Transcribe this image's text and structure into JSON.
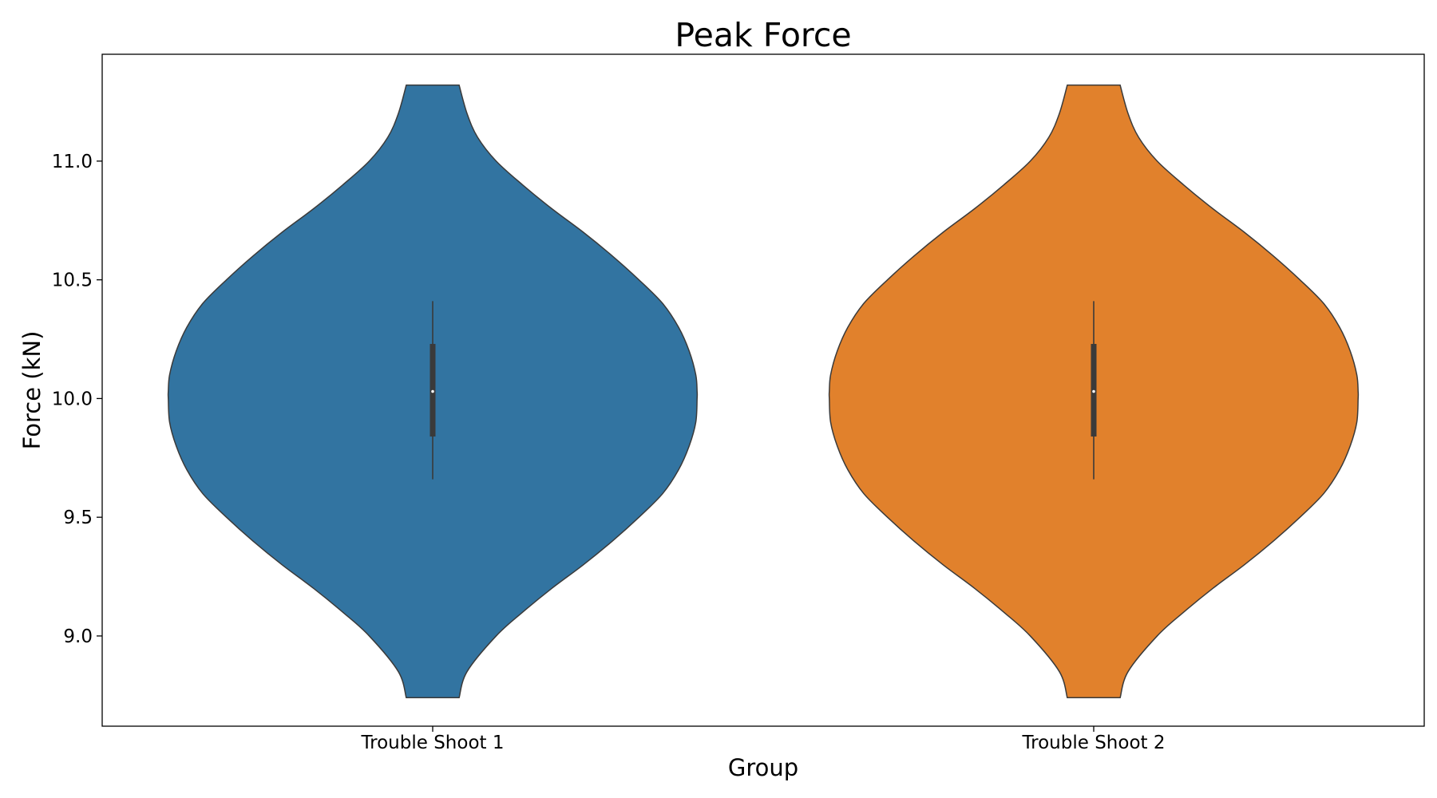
{
  "chart_data": {
    "type": "violin",
    "title": "Peak Force",
    "xlabel": "Group",
    "ylabel": "Force (kN)",
    "categories": [
      "Trouble Shoot 1",
      "Trouble Shoot 2"
    ],
    "ylim": [
      8.62,
      11.45
    ],
    "yticks": [
      9.0,
      9.5,
      10.0,
      10.5,
      11.0
    ],
    "ytick_labels": [
      "9.0",
      "9.5",
      "10.0",
      "10.5",
      "11.0"
    ],
    "grid": false,
    "series": [
      {
        "category": "Trouble Shoot 1",
        "color": "#3274a1",
        "stats": {
          "min": 9.66,
          "q1": 9.84,
          "median": 10.03,
          "q3": 10.23,
          "max": 10.41
        },
        "density_y": [
          8.74,
          8.85,
          9.0,
          9.1,
          9.2,
          9.3,
          9.4,
          9.5,
          9.6,
          9.7,
          9.8,
          9.9,
          10.0,
          10.03,
          10.1,
          10.2,
          10.3,
          10.4,
          10.5,
          10.6,
          10.7,
          10.8,
          10.9,
          11.0,
          11.1,
          11.2,
          11.32
        ],
        "density_w": [
          0.1,
          0.13,
          0.24,
          0.34,
          0.45,
          0.57,
          0.68,
          0.78,
          0.87,
          0.93,
          0.97,
          0.995,
          1.0,
          1.0,
          0.995,
          0.97,
          0.93,
          0.87,
          0.78,
          0.68,
          0.57,
          0.45,
          0.34,
          0.24,
          0.17,
          0.13,
          0.1
        ]
      },
      {
        "category": "Trouble Shoot 2",
        "color": "#e1812c",
        "stats": {
          "min": 9.66,
          "q1": 9.84,
          "median": 10.03,
          "q3": 10.23,
          "max": 10.41
        },
        "density_y": [
          8.74,
          8.85,
          9.0,
          9.1,
          9.2,
          9.3,
          9.4,
          9.5,
          9.6,
          9.7,
          9.8,
          9.9,
          10.0,
          10.03,
          10.1,
          10.2,
          10.3,
          10.4,
          10.5,
          10.6,
          10.7,
          10.8,
          10.9,
          11.0,
          11.1,
          11.2,
          11.32
        ],
        "density_w": [
          0.1,
          0.13,
          0.24,
          0.34,
          0.45,
          0.57,
          0.68,
          0.78,
          0.87,
          0.93,
          0.97,
          0.995,
          1.0,
          1.0,
          0.995,
          0.97,
          0.93,
          0.87,
          0.78,
          0.68,
          0.57,
          0.45,
          0.34,
          0.24,
          0.17,
          0.13,
          0.1
        ]
      }
    ]
  }
}
